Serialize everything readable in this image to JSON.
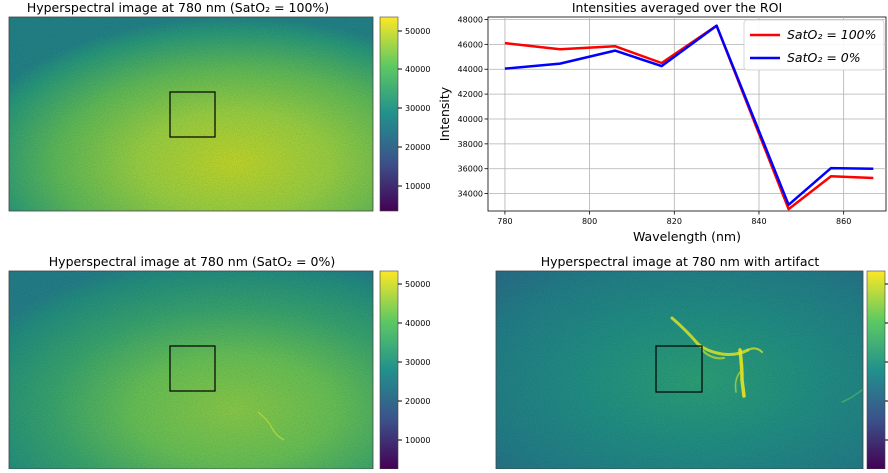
{
  "panels": {
    "top_left": {
      "title": "Hyperspectral image at 780 nm (SatO₂ = 100%)",
      "colorbar_ticks": [
        "10000",
        "20000",
        "30000",
        "40000",
        "50000"
      ]
    },
    "bottom_left": {
      "title": "Hyperspectral image at 780 nm (SatO₂ = 0%)",
      "colorbar_ticks": [
        "10000",
        "20000",
        "30000",
        "40000",
        "50000"
      ]
    },
    "bottom_right": {
      "title": "Hyperspectral image at 780 nm with artifact"
    }
  },
  "colors": {
    "viridis": [
      "#440154",
      "#3b528b",
      "#21918c",
      "#5ec962",
      "#fde725"
    ],
    "series_100": "#ff0000",
    "series_0": "#0000ff",
    "roi_box": "#000000"
  },
  "chart_data": {
    "type": "line",
    "title": "Intensities averaged over the ROI",
    "xlabel": "Wavelength (nm)",
    "ylabel": "Intensity",
    "xlim": [
      776,
      870
    ],
    "ylim": [
      32600,
      48200
    ],
    "xticks": [
      780,
      800,
      820,
      840,
      860
    ],
    "yticks": [
      34000,
      36000,
      38000,
      40000,
      42000,
      44000,
      46000,
      48000
    ],
    "grid": true,
    "legend_position": "top-right",
    "x": [
      780,
      793,
      806,
      817,
      830,
      847,
      857,
      867
    ],
    "series": [
      {
        "name": "SatO₂ = 100%",
        "color": "#ff0000",
        "values": [
          46100,
          45600,
          45850,
          44500,
          47500,
          32750,
          35400,
          35250
        ]
      },
      {
        "name": "SatO₂ = 0%",
        "color": "#0000ff",
        "values": [
          44050,
          44450,
          45500,
          44250,
          47500,
          33100,
          36050,
          36000
        ]
      }
    ]
  }
}
